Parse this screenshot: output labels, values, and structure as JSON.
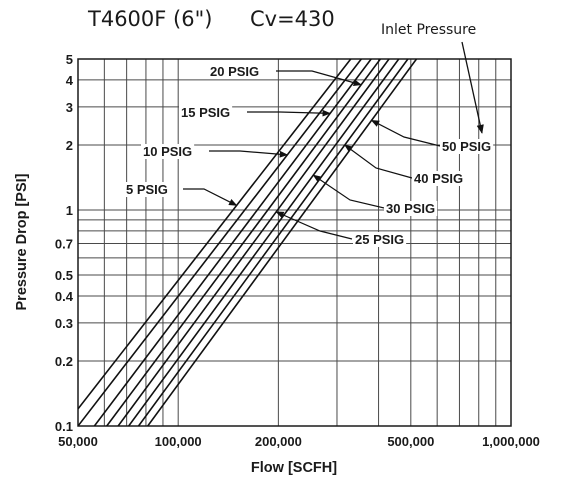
{
  "header": {
    "model": "T4600F (6\")",
    "cv": "Cv=430",
    "legend_title": "Inlet Pressure"
  },
  "chart_data": {
    "type": "line",
    "title": "T4600F (6\")",
    "subtitle": "Cv=430",
    "xlabel": "Flow [SCFH]",
    "ylabel": "Pressure Drop [PSI]",
    "x_scale": "log",
    "y_scale": "log",
    "xlim": [
      50000,
      1000000
    ],
    "ylim": [
      0.1,
      5
    ],
    "x_ticks": [
      {
        "value": 50000,
        "label": "50,000"
      },
      {
        "value": 100000,
        "label": "100,000"
      },
      {
        "value": 200000,
        "label": "200,000"
      },
      {
        "value": 500000,
        "label": "500,000"
      },
      {
        "value": 1000000,
        "label": "1,000,000"
      }
    ],
    "y_ticks": [
      {
        "value": 0.1,
        "label": "0.1"
      },
      {
        "value": 0.2,
        "label": "0.2"
      },
      {
        "value": 0.3,
        "label": "0.3"
      },
      {
        "value": 0.4,
        "label": "0.4"
      },
      {
        "value": 0.5,
        "label": "0.5"
      },
      {
        "value": 0.7,
        "label": "0.7"
      },
      {
        "value": 1,
        "label": "1"
      },
      {
        "value": 2,
        "label": "2"
      },
      {
        "value": 3,
        "label": "3"
      },
      {
        "value": 4,
        "label": "4"
      },
      {
        "value": 5,
        "label": "5"
      }
    ],
    "x_grid": [
      50000,
      60000,
      70000,
      80000,
      90000,
      100000,
      200000,
      300000,
      400000,
      500000,
      600000,
      700000,
      800000,
      900000,
      1000000
    ],
    "y_grid": [
      0.1,
      0.2,
      0.3,
      0.4,
      0.5,
      0.6,
      0.7,
      0.8,
      0.9,
      1,
      2,
      3,
      4,
      5
    ],
    "grid": true,
    "legend_title": "Inlet Pressure",
    "series": [
      {
        "name": "5 PSIG",
        "x": [
          50000,
          330000
        ],
        "y": [
          0.12,
          5
        ]
      },
      {
        "name": "10 PSIG",
        "x": [
          50000,
          355000
        ],
        "y": [
          0.1,
          5
        ]
      },
      {
        "name": "15 PSIG",
        "x": [
          56000,
          380000
        ],
        "y": [
          0.1,
          5
        ]
      },
      {
        "name": "20 PSIG",
        "x": [
          61000,
          405000
        ],
        "y": [
          0.1,
          5
        ]
      },
      {
        "name": "25 PSIG",
        "x": [
          66000,
          430000
        ],
        "y": [
          0.1,
          5
        ]
      },
      {
        "name": "30 PSIG",
        "x": [
          71000,
          460000
        ],
        "y": [
          0.1,
          5
        ]
      },
      {
        "name": "40 PSIG",
        "x": [
          76000,
          490000
        ],
        "y": [
          0.1,
          5
        ]
      },
      {
        "name": "50 PSIG",
        "x": [
          81000,
          520000
        ],
        "y": [
          0.1,
          5
        ]
      }
    ],
    "annotations": [
      {
        "text": "20 PSIG",
        "points_to": "20 PSIG"
      },
      {
        "text": "15 PSIG",
        "points_to": "15 PSIG"
      },
      {
        "text": "10 PSIG",
        "points_to": "10 PSIG"
      },
      {
        "text": "5 PSIG",
        "points_to": "5 PSIG"
      },
      {
        "text": "25 PSIG",
        "points_to": "25 PSIG"
      },
      {
        "text": "30 PSIG",
        "points_to": "30 PSIG"
      },
      {
        "text": "40 PSIG",
        "points_to": "40 PSIG"
      },
      {
        "text": "50 PSIG",
        "points_to": "50 PSIG"
      }
    ]
  }
}
